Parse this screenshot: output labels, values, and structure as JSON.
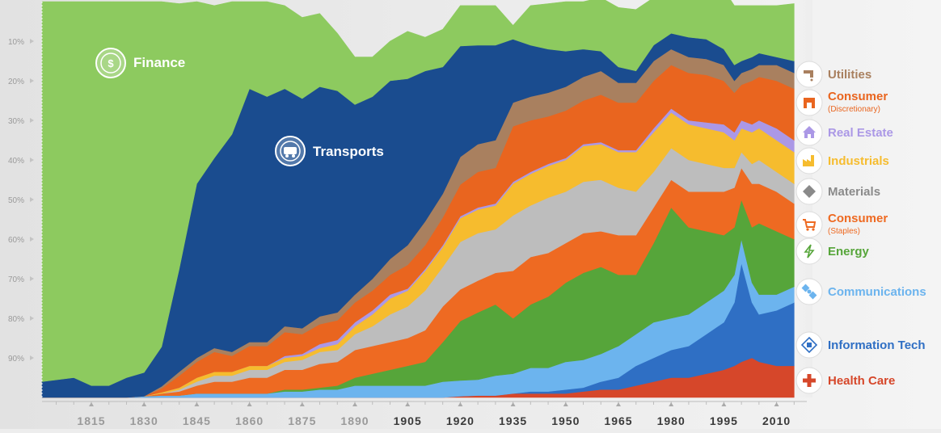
{
  "chart_data": {
    "type": "area",
    "title": "",
    "stacking": "percent",
    "x": [
      1800,
      1810,
      1815,
      1820,
      1825,
      1830,
      1835,
      1840,
      1845,
      1850,
      1855,
      1860,
      1865,
      1870,
      1875,
      1880,
      1885,
      1890,
      1895,
      1900,
      1905,
      1910,
      1915,
      1920,
      1925,
      1930,
      1935,
      1940,
      1945,
      1950,
      1955,
      1960,
      1965,
      1970,
      1975,
      1980,
      1985,
      1990,
      1995,
      1998,
      2000,
      2003,
      2005,
      2010,
      2015
    ],
    "x_ticks": [
      "1815",
      "1830",
      "1845",
      "1860",
      "1875",
      "1890",
      "1905",
      "1920",
      "1935",
      "1950",
      "1965",
      "1980",
      "1995",
      "2010"
    ],
    "x_tick_values": [
      1815,
      1830,
      1845,
      1860,
      1875,
      1890,
      1905,
      1920,
      1935,
      1950,
      1965,
      1980,
      1995,
      2010
    ],
    "bold_ticks_from": 1905,
    "y_ticks": [
      "10%",
      "20%",
      "30%",
      "40%",
      "50%",
      "60%",
      "70%",
      "80%",
      "90%"
    ],
    "y_tick_values": [
      10,
      20,
      30,
      40,
      50,
      60,
      70,
      80,
      90
    ],
    "ylim": [
      0,
      100
    ],
    "xlim": [
      1800,
      2015
    ],
    "series": [
      {
        "name": "Health Care",
        "color": "#d6472a",
        "values": [
          0,
          0,
          0,
          0,
          0,
          0,
          0,
          0,
          0,
          0,
          0,
          0,
          0,
          0,
          0,
          0,
          0,
          0,
          0,
          0,
          0,
          0,
          0,
          0.3,
          0.5,
          0.5,
          1,
          1,
          1,
          1,
          1.5,
          2,
          2,
          3,
          4,
          5,
          5,
          6,
          7,
          8,
          9,
          10,
          9,
          8,
          8
        ]
      },
      {
        "name": "Information Tech",
        "color": "#2f6fc4",
        "values": [
          0,
          0,
          0,
          0,
          0,
          0,
          0,
          0,
          0,
          0,
          0,
          0,
          0,
          0,
          0,
          0,
          0,
          0,
          0,
          0,
          0,
          0,
          0,
          0,
          0,
          0,
          0,
          0.5,
          0.5,
          1,
          1,
          2,
          3,
          5,
          6,
          7,
          8,
          10,
          12,
          16,
          25,
          14,
          12,
          14,
          16
        ]
      },
      {
        "name": "Communications",
        "color": "#6cb4ee",
        "values": [
          0,
          0,
          0,
          0,
          0,
          0.3,
          0.5,
          0.5,
          1,
          1,
          1,
          1,
          1,
          1.5,
          1.5,
          2,
          2,
          3,
          3,
          3,
          3,
          3,
          4,
          4,
          4,
          5,
          5,
          6,
          6,
          7,
          7,
          7,
          8,
          8,
          9,
          8,
          8,
          8,
          8,
          7,
          6,
          5,
          5,
          4,
          4
        ]
      },
      {
        "name": "Energy",
        "color": "#56a53a",
        "values": [
          0,
          0,
          0,
          0,
          0,
          0,
          0,
          0,
          0,
          0,
          0,
          0,
          0,
          0.5,
          0.5,
          0.5,
          1,
          2,
          3,
          4,
          5,
          6,
          10,
          15,
          17,
          18,
          14,
          16,
          18,
          20,
          22,
          22,
          18,
          15,
          20,
          28,
          22,
          18,
          14,
          12,
          10,
          14,
          18,
          16,
          12
        ]
      },
      {
        "name": "Consumer (Staples)",
        "color": "#ee6a22",
        "values": [
          0,
          0,
          0,
          0,
          0,
          0,
          0.5,
          1,
          2,
          3,
          3,
          4,
          4,
          5,
          5,
          6,
          6,
          7,
          7,
          7,
          7,
          8,
          9,
          8,
          8,
          8,
          12,
          12,
          11,
          10,
          10,
          9,
          10,
          10,
          9,
          7,
          9,
          10,
          11,
          10,
          8,
          11,
          10,
          10,
          9
        ]
      },
      {
        "name": "Materials",
        "color": "#bdbdbd",
        "values": [
          0,
          0,
          0,
          0,
          0,
          0,
          0,
          0.5,
          1,
          1.5,
          1.5,
          2,
          2,
          2,
          2.5,
          3,
          3,
          4,
          5,
          7,
          8,
          10,
          10,
          12,
          12,
          11,
          14,
          13,
          14,
          13,
          13,
          13,
          12,
          11,
          9,
          8,
          8,
          7,
          6,
          5,
          4,
          5,
          6,
          5,
          5
        ]
      },
      {
        "name": "Industrials",
        "color": "#f6bc2e",
        "values": [
          0,
          0,
          0,
          0,
          0,
          0,
          0.3,
          0.5,
          1,
          1,
          1,
          1,
          1,
          1,
          1,
          1,
          1.5,
          2,
          3,
          4,
          4,
          5,
          5,
          6,
          6,
          6,
          8,
          8,
          8,
          8,
          9,
          9,
          9,
          10,
          10,
          9,
          9,
          9,
          9,
          7,
          6,
          8,
          8,
          8,
          8
        ]
      },
      {
        "name": "Real Estate",
        "color": "#ab98e6",
        "values": [
          0,
          0,
          0,
          0,
          0,
          0,
          0,
          0,
          0,
          0,
          0,
          0,
          0,
          0.5,
          0.5,
          1,
          1,
          1,
          1,
          1,
          0.5,
          0.5,
          0.5,
          0.5,
          0.5,
          0.5,
          0.5,
          0.5,
          0.5,
          0.5,
          0.5,
          0.5,
          0.5,
          0.5,
          1,
          1,
          1,
          1.5,
          2,
          2,
          2,
          2,
          2,
          3,
          3
        ]
      },
      {
        "name": "Consumer (Discretionary)",
        "color": "#e9651f",
        "values": [
          0,
          0,
          0,
          0,
          0,
          0,
          1,
          3,
          4,
          5,
          4,
          5,
          5,
          6,
          5,
          5,
          5,
          5,
          5,
          5,
          6,
          6,
          7,
          8,
          9,
          9,
          14,
          13,
          12,
          12,
          11,
          12,
          12,
          12,
          12,
          11,
          12,
          12,
          11,
          10,
          9,
          11,
          11,
          12,
          13
        ]
      },
      {
        "name": "Utilities",
        "color": "#a9805f",
        "values": [
          0,
          0,
          0,
          0,
          0,
          0,
          0.5,
          1,
          1,
          1,
          1,
          1,
          1,
          1.5,
          1.5,
          2,
          2,
          2,
          3,
          4,
          5,
          6,
          6,
          7,
          7,
          7,
          6,
          6,
          6,
          6,
          6,
          6,
          5,
          5,
          5,
          4,
          4,
          4,
          4,
          3,
          3,
          3,
          3,
          4,
          4
        ]
      },
      {
        "name": "Transports",
        "color": "#1a4c8f",
        "values": [
          4,
          5,
          3,
          3,
          5,
          6,
          10,
          26,
          44,
          48,
          55,
          64,
          62,
          60,
          58,
          58,
          56,
          48,
          46,
          45,
          42,
          38,
          32,
          28,
          25,
          24,
          16,
          13,
          11,
          9,
          7,
          5,
          4,
          3,
          4,
          4,
          5,
          5,
          4,
          4,
          3,
          3,
          3,
          2,
          3
        ]
      },
      {
        "name": "Finance",
        "color": "#8dca5f",
        "values": [
          96,
          95,
          97,
          97,
          95,
          93.7,
          87.2,
          67,
          46,
          38.5,
          33.5,
          22,
          24,
          21,
          20.5,
          18.5,
          14.5,
          12,
          10,
          10,
          12,
          8.5,
          9.5,
          10.2,
          10,
          10,
          3.5,
          10,
          11.5,
          12.5,
          12,
          13.5,
          15,
          15.5,
          12,
          14,
          14,
          13.5,
          15,
          15,
          14,
          13,
          12,
          13,
          14.5
        ]
      }
    ],
    "legend": [
      {
        "label": "Utilities",
        "sub": "",
        "color": "#a9805f",
        "icon": "faucet-icon"
      },
      {
        "label": "Consumer",
        "sub": "(Discretionary)",
        "color": "#e9651f",
        "icon": "storefront-icon"
      },
      {
        "label": "Real Estate",
        "sub": "",
        "color": "#ab98e6",
        "icon": "house-icon"
      },
      {
        "label": "Industrials",
        "sub": "",
        "color": "#f6bc2e",
        "icon": "factory-icon"
      },
      {
        "label": "Materials",
        "sub": "",
        "color": "#8a8a8a",
        "icon": "diamond-icon"
      },
      {
        "label": "Consumer",
        "sub": "(Staples)",
        "color": "#ee6a22",
        "icon": "cart-icon"
      },
      {
        "label": "Energy",
        "sub": "",
        "color": "#56a53a",
        "icon": "lightning-icon"
      },
      {
        "label": "Communications",
        "sub": "",
        "color": "#6cb4ee",
        "icon": "satellite-icon"
      },
      {
        "label": "Information Tech",
        "sub": "",
        "color": "#2f6fc4",
        "icon": "chip-icon"
      },
      {
        "label": "Health Care",
        "sub": "",
        "color": "#d6472a",
        "icon": "cross-icon"
      }
    ],
    "annotations": [
      {
        "label": "Finance",
        "icon": "money-bag-icon"
      },
      {
        "label": "Transports",
        "icon": "train-icon"
      }
    ]
  }
}
